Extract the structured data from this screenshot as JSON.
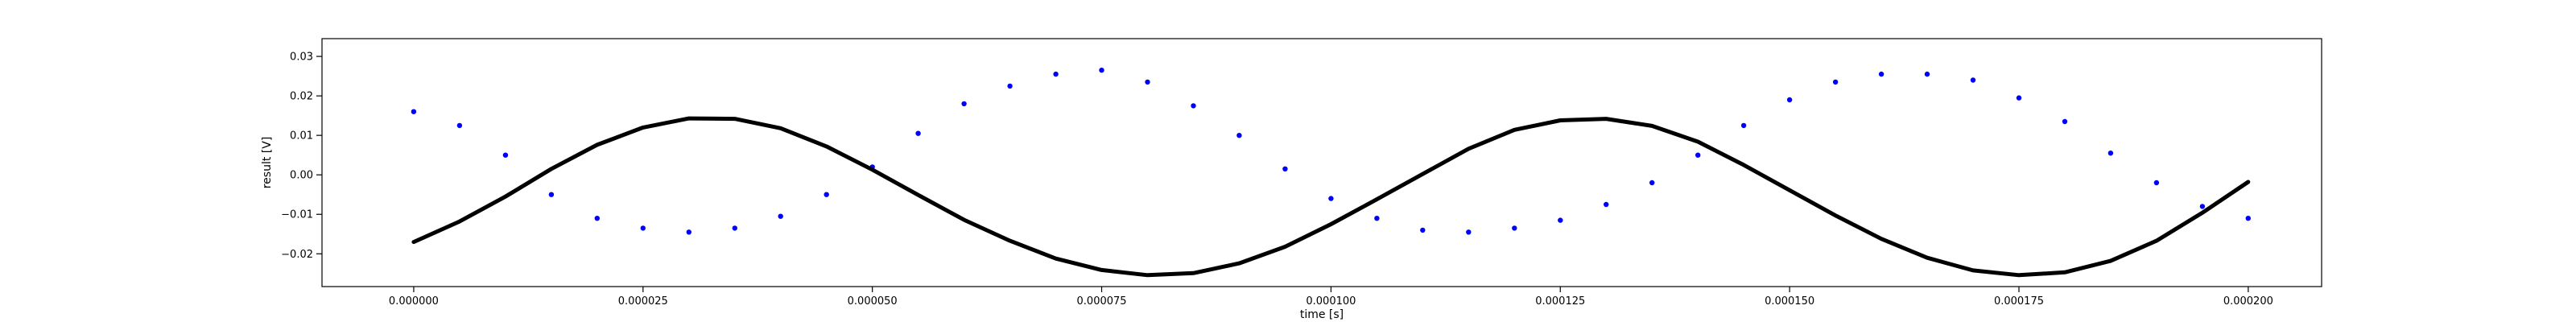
{
  "chart_data": {
    "type": "scatter",
    "xlabel": "time [s]",
    "ylabel": "result [V]",
    "xlim": [
      -1e-05,
      0.000208
    ],
    "ylim": [
      -0.0283,
      0.0345
    ],
    "x_ticks": [
      0.0,
      2.5e-05,
      5e-05,
      7.5e-05,
      0.0001,
      0.000125,
      0.00015,
      0.000175,
      0.0002
    ],
    "x_tick_labels": [
      "0.000000",
      "0.000025",
      "0.000050",
      "0.000075",
      "0.000100",
      "0.000125",
      "0.000150",
      "0.000175",
      "0.000200"
    ],
    "y_ticks": [
      -0.02,
      -0.01,
      0.0,
      0.01,
      0.02,
      0.03
    ],
    "y_tick_labels": [
      "−0.02",
      "−0.01",
      "0.00",
      "0.01",
      "0.02",
      "0.03"
    ],
    "grid": false,
    "series": [
      {
        "marker": "dot",
        "color": "#0000ff",
        "x": [
          0.0,
          5e-06,
          1e-05,
          1.5e-05,
          2e-05,
          2.5e-05,
          3e-05,
          3.5e-05,
          4e-05,
          4.5e-05,
          5e-05,
          5.5e-05,
          6e-05,
          6.5e-05,
          7e-05,
          7.5e-05,
          8e-05,
          8.5e-05,
          9e-05,
          9.5e-05,
          0.0001,
          0.000105,
          0.00011,
          0.000115,
          0.00012,
          0.000125,
          0.00013,
          0.000135,
          0.00014,
          0.000145,
          0.00015,
          0.000155,
          0.00016,
          0.000165,
          0.00017,
          0.000175,
          0.00018,
          0.000185,
          0.00019,
          0.000195,
          0.0002
        ],
        "y": [
          0.016,
          0.0125,
          0.005,
          -0.005,
          -0.011,
          -0.0135,
          -0.0145,
          -0.0135,
          -0.0105,
          -0.005,
          0.002,
          0.0105,
          0.018,
          0.0225,
          0.0255,
          0.0265,
          0.0235,
          0.0175,
          0.01,
          0.0015,
          -0.006,
          -0.011,
          -0.014,
          -0.0145,
          -0.0135,
          -0.0115,
          -0.0075,
          -0.002,
          0.005,
          0.0125,
          0.019,
          0.0235,
          0.0255,
          0.0255,
          0.024,
          0.0195,
          0.0135,
          0.0055,
          -0.002,
          -0.008,
          -0.011
        ]
      },
      {
        "marker": "line",
        "color": "#000000",
        "x": [
          0.0,
          5e-06,
          1e-05,
          1.5e-05,
          2e-05,
          2.5e-05,
          3e-05,
          3.5e-05,
          4e-05,
          4.5e-05,
          5e-05,
          5.5e-05,
          6e-05,
          6.5e-05,
          7e-05,
          7.5e-05,
          8e-05,
          8.5e-05,
          9e-05,
          9.5e-05,
          0.0001,
          0.000105,
          0.00011,
          0.000115,
          0.00012,
          0.000125,
          0.00013,
          0.000135,
          0.00014,
          0.000145,
          0.00015,
          0.000155,
          0.00016,
          0.000165,
          0.00017,
          0.000175,
          0.00018,
          0.000185,
          0.00019,
          0.000195,
          0.0002
        ],
        "y": [
          -0.017,
          -0.0118,
          -0.0055,
          0.0015,
          0.0076,
          0.012,
          0.0143,
          0.0142,
          0.0118,
          0.0072,
          0.0013,
          -0.0051,
          -0.0114,
          -0.0167,
          -0.0212,
          -0.0241,
          -0.0254,
          -0.0249,
          -0.0224,
          -0.0182,
          -0.0125,
          -0.0062,
          0.0002,
          0.0066,
          0.0114,
          0.0138,
          0.0142,
          0.0124,
          0.0084,
          0.0025,
          -0.0039,
          -0.0103,
          -0.0162,
          -0.021,
          -0.0242,
          -0.0254,
          -0.0247,
          -0.0218,
          -0.0167,
          -0.0096,
          -0.0018
        ]
      }
    ]
  }
}
